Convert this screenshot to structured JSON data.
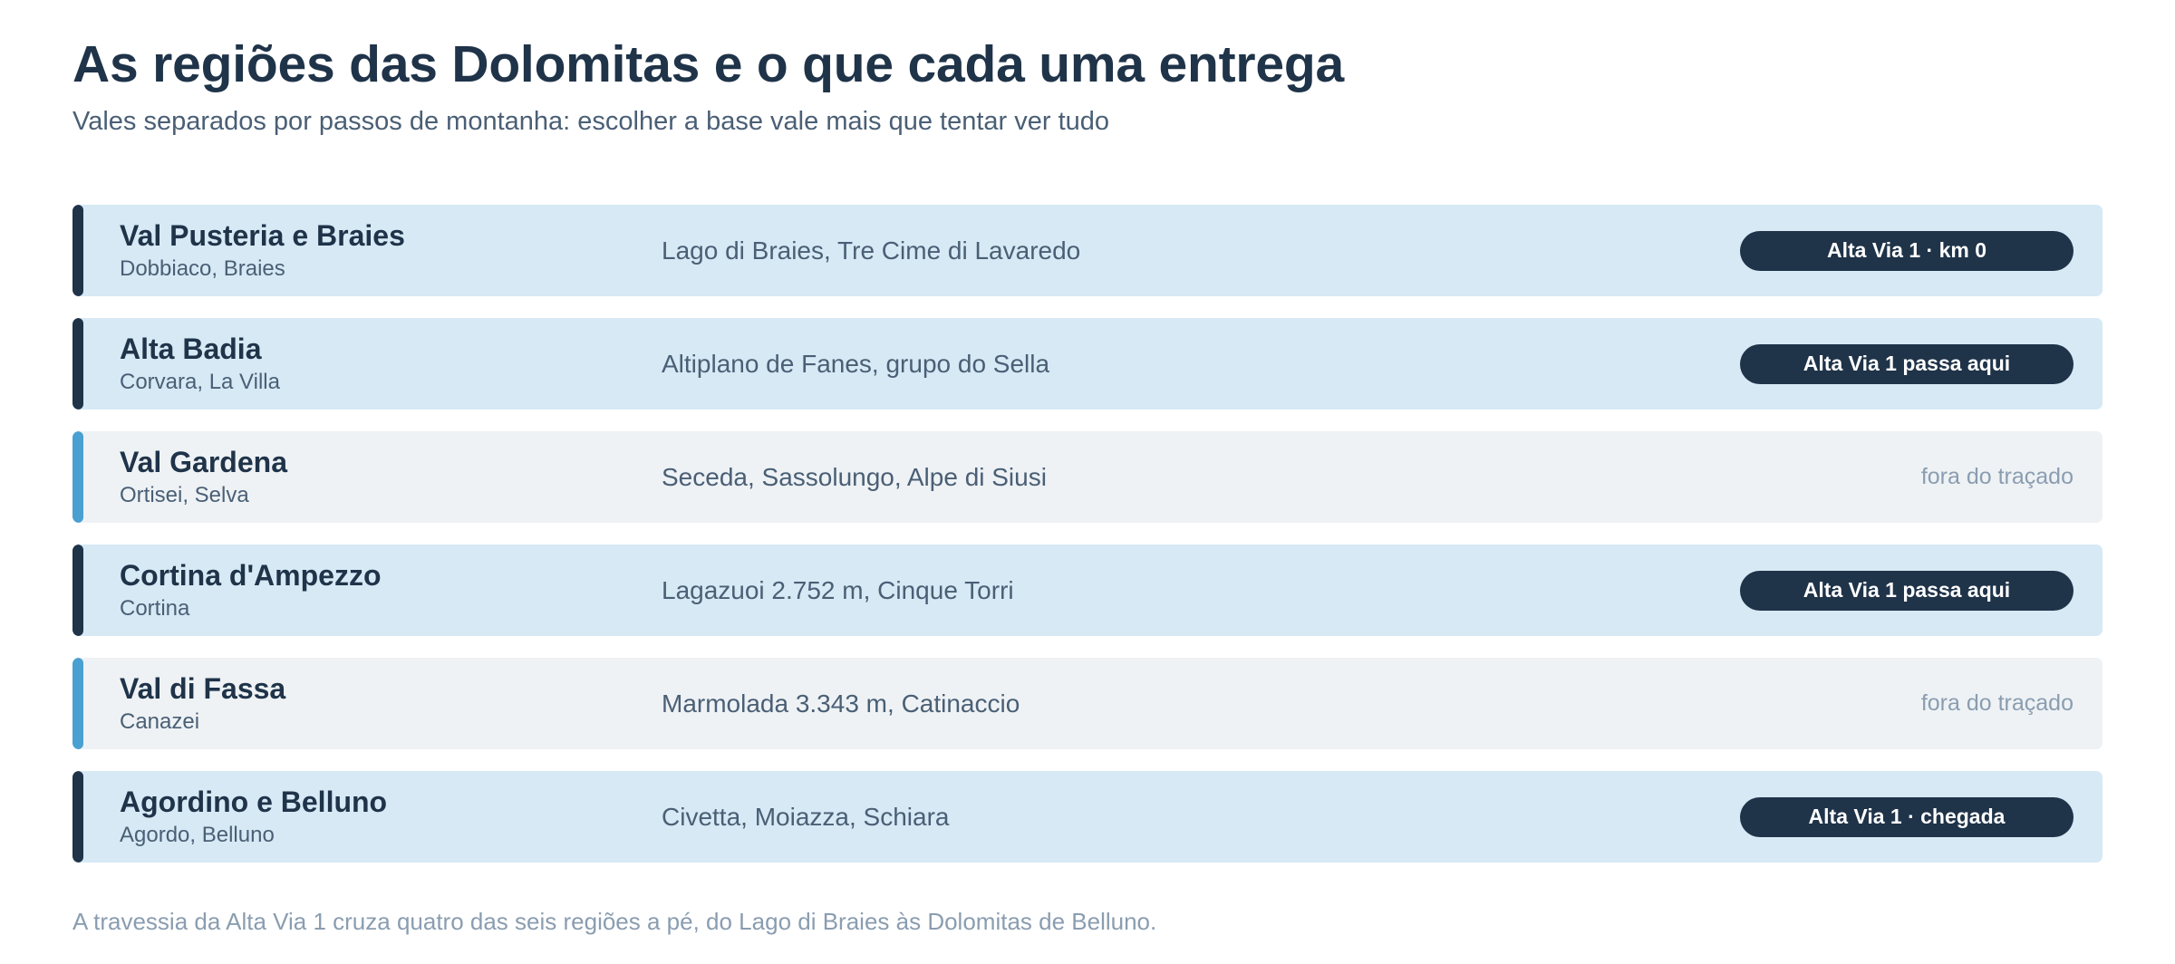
{
  "header": {
    "title": "As regiões das Dolomitas e o que cada uma entrega",
    "subtitle": "Vales separados por passos de montanha: escolher a base vale mais que tentar ver tudo"
  },
  "colors": {
    "on_route_bg": "#d6e9f5",
    "off_route_bg": "#eef2f5",
    "on_route_accent": "#1f3349",
    "off_route_accent": "#4aa0d0",
    "badge_bg": "#1f3349"
  },
  "regions": [
    {
      "name": "Val Pusteria e Braies",
      "towns": "Dobbiaco, Braies",
      "highlights": "Lago di Braies, Tre Cime di Lavaredo",
      "tag": "Alta Via 1 · km 0",
      "on_route": true
    },
    {
      "name": "Alta Badia",
      "towns": "Corvara, La Villa",
      "highlights": "Altiplano de Fanes, grupo do Sella",
      "tag": "Alta Via 1 passa aqui",
      "on_route": true
    },
    {
      "name": "Val Gardena",
      "towns": "Ortisei, Selva",
      "highlights": "Seceda, Sassolungo, Alpe di Siusi",
      "tag": "fora do traçado",
      "on_route": false
    },
    {
      "name": "Cortina d'Ampezzo",
      "towns": "Cortina",
      "highlights": "Lagazuoi 2.752 m, Cinque Torri",
      "tag": "Alta Via 1 passa aqui",
      "on_route": true
    },
    {
      "name": "Val di Fassa",
      "towns": "Canazei",
      "highlights": "Marmolada 3.343 m, Catinaccio",
      "tag": "fora do traçado",
      "on_route": false
    },
    {
      "name": "Agordino e Belluno",
      "towns": "Agordo, Belluno",
      "highlights": "Civetta, Moiazza, Schiara",
      "tag": "Alta Via 1 · chegada",
      "on_route": true
    }
  ],
  "footnote": "A travessia da Alta Via 1 cruza quatro das seis regiões a pé, do Lago di Braies às Dolomitas de Belluno."
}
